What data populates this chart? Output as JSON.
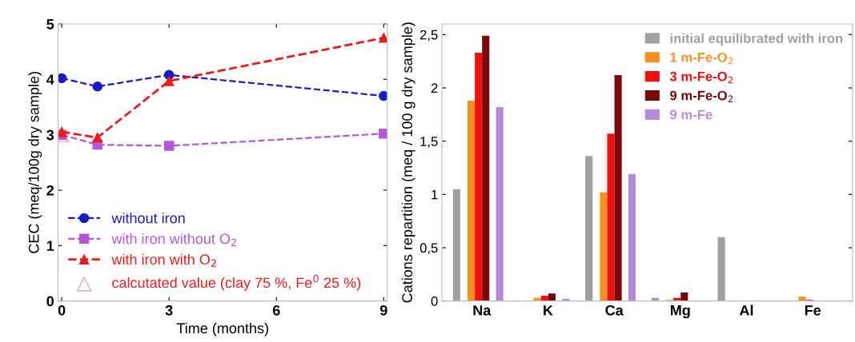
{
  "chart_data": [
    {
      "type": "line",
      "xlabel": "Time (months)",
      "ylabel": "CEC (meq/100g dry sample)",
      "xlim": [
        -0.1,
        9.1
      ],
      "ylim": [
        0,
        5
      ],
      "xticks": [
        0,
        3,
        6,
        9
      ],
      "yticks": [
        0,
        1,
        2,
        3,
        4,
        5
      ],
      "grid": false,
      "legend": "bottom left",
      "line_style": "dashed",
      "series": [
        {
          "name": "without iron",
          "color": "#1a1ac8",
          "marker": "circle",
          "x": [
            0,
            1,
            3,
            9
          ],
          "values": [
            4.02,
            3.87,
            4.08,
            3.7
          ]
        },
        {
          "name": "with iron without O$_{2}$",
          "color": "#b455dc",
          "marker": "square",
          "x": [
            0,
            1,
            3,
            9
          ],
          "values": [
            3.0,
            2.82,
            2.8,
            3.02
          ]
        },
        {
          "name": "with iron with O$_{2}$",
          "color": "#ee1a1a",
          "marker": "triangle",
          "x": [
            0,
            1,
            3,
            9
          ],
          "values": [
            3.05,
            2.95,
            3.97,
            4.75
          ]
        },
        {
          "name": "calcutated value (clay 75 %, Fe$^{0}$ 25 %)",
          "type": "scatter",
          "color": "#f0a0a0",
          "marker": "triangle",
          "x": [
            0
          ],
          "values": [
            3.0
          ]
        }
      ]
    },
    {
      "type": "bar",
      "ylabel": "Cations repartition (meq / 100 g dry sample)",
      "categories": [
        "Na",
        "K",
        "Ca",
        "Mg",
        "Al",
        "Fe"
      ],
      "ylim": [
        0,
        2.6
      ],
      "yticks": [
        {
          "value": 0,
          "label": "0"
        },
        {
          "value": 0.5,
          "label": "0,5"
        },
        {
          "value": 1,
          "label": "1"
        },
        {
          "value": 1.5,
          "label": "1,5"
        },
        {
          "value": 2,
          "label": "2"
        },
        {
          "value": 2.5,
          "label": "2,5"
        }
      ],
      "grid": false,
      "legend": "top right",
      "series": [
        {
          "name": "initial equilibrated with iron",
          "color": "#a0a0a0",
          "values": [
            1.05,
            0.005,
            1.36,
            0.03,
            0.6,
            0
          ]
        },
        {
          "name": "1 m-Fe-O$_{2}$",
          "color": "#f7901e",
          "values": [
            1.88,
            0.03,
            1.02,
            0.01,
            0,
            0.04
          ]
        },
        {
          "name": "3 m-Fe-O$_{2}$",
          "color": "#f01010",
          "values": [
            2.33,
            0.05,
            1.57,
            0.03,
            0,
            0.01
          ]
        },
        {
          "name": "9 m-Fe-O$_{2}$",
          "color": "#7a0808",
          "values": [
            2.49,
            0.07,
            2.12,
            0.08,
            0,
            0
          ]
        },
        {
          "name": "9 m-Fe",
          "color": "#b58ad8",
          "values": [
            1.82,
            0.02,
            1.19,
            0.005,
            0,
            0
          ]
        }
      ]
    }
  ]
}
